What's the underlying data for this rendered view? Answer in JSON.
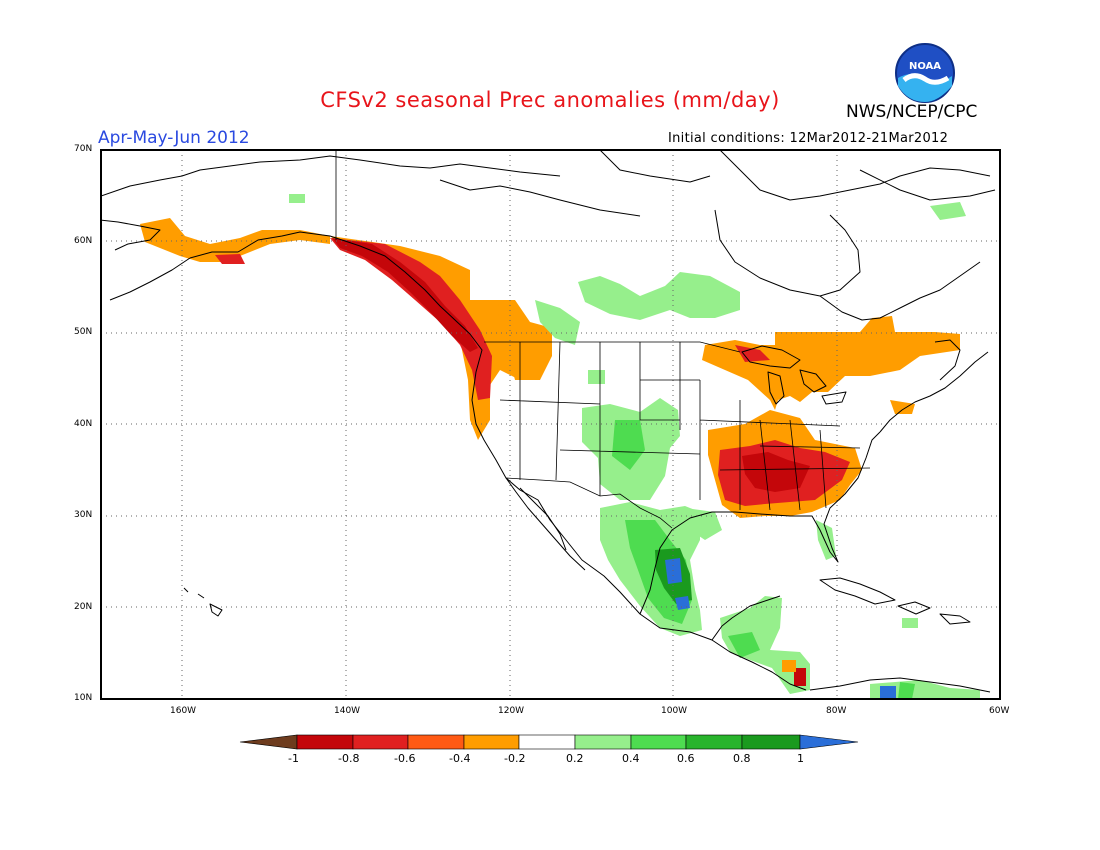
{
  "title": "CFSv2 seasonal Prec anomalies (mm/day)",
  "period": "Apr-May-Jun 2012",
  "initial_conditions": "Initial conditions: 12Mar2012-21Mar2012",
  "organization": "NWS/NCEP/CPC",
  "logo_text": "NOAA",
  "map": {
    "lat_ticks": [
      "70N",
      "60N",
      "50N",
      "40N",
      "30N",
      "20N",
      "10N"
    ],
    "lon_ticks": [
      "160W",
      "140W",
      "120W",
      "100W",
      "80W",
      "60W"
    ],
    "lat_range": [
      10,
      70
    ],
    "lon_range": [
      -170,
      -60
    ],
    "gridlines": "dotted"
  },
  "colorbar": {
    "labels": [
      "-1",
      "-0.8",
      "-0.6",
      "-0.4",
      "-0.2",
      "0.2",
      "0.4",
      "0.6",
      "0.8",
      "1"
    ],
    "colors": [
      "#6e3c1e",
      "#c4060a",
      "#e02020",
      "#ff5a14",
      "#ff9d00",
      "#ffffff",
      "#96ef8c",
      "#4edc50",
      "#28b42c",
      "#1a9a1e",
      "#2a6ed8"
    ]
  },
  "anomaly_regions": [
    {
      "name": "alaska-south-coast",
      "value": -0.3
    },
    {
      "name": "alaska-panhandle-bc-coast",
      "value": -0.7
    },
    {
      "name": "pacific-northwest-coast",
      "value": -0.5
    },
    {
      "name": "northern-rockies",
      "value": -0.3
    },
    {
      "name": "great-lakes-quebec",
      "value": -0.3
    },
    {
      "name": "ohio-tennessee-valley",
      "value": -0.5
    },
    {
      "name": "southeast-us",
      "value": -0.3
    },
    {
      "name": "canadian-prairies",
      "value": 0.3
    },
    {
      "name": "southern-plains-rockies",
      "value": 0.3
    },
    {
      "name": "mexico",
      "value": 0.5
    },
    {
      "name": "central-mexico-core",
      "value": 1.0
    },
    {
      "name": "central-america",
      "value": 0.5
    },
    {
      "name": "northern-south-america",
      "value": 0.5
    }
  ]
}
